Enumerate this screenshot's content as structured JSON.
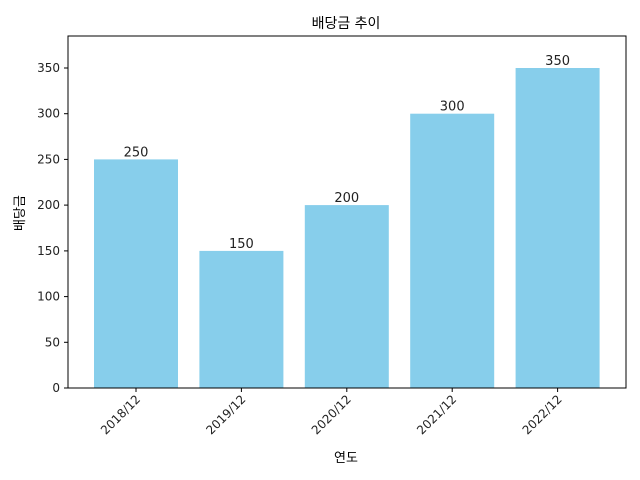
{
  "chart_data": {
    "type": "bar",
    "title": "배당금 추이",
    "xlabel": "연도",
    "ylabel": "배당금",
    "categories": [
      "2018/12",
      "2019/12",
      "2020/12",
      "2021/12",
      "2022/12"
    ],
    "values": [
      250,
      150,
      200,
      300,
      350
    ],
    "ylim": [
      0,
      385
    ],
    "yticks": [
      0,
      50,
      100,
      150,
      200,
      250,
      300,
      350
    ],
    "grid": false,
    "bar_color": "#87CEEB",
    "data_labels": true,
    "xtick_rotation_deg": 45
  }
}
